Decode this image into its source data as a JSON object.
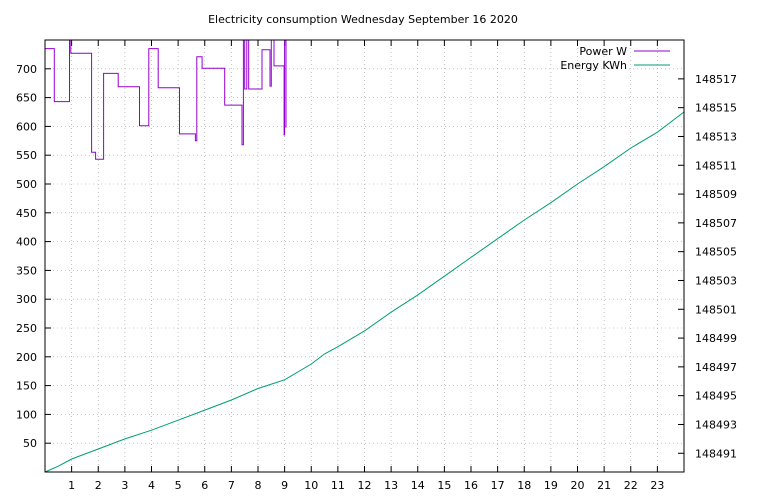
{
  "chart_data": {
    "type": "line",
    "title": "Electricity consumption Wednesday September 16 2020",
    "xlabel": "",
    "ylabel": "",
    "y2label": "",
    "xlim": [
      0,
      24
    ],
    "ylim": [
      0,
      750
    ],
    "y2lim": [
      148489.7,
      148519.7
    ],
    "grid": true,
    "legend_position": "top-right",
    "x_ticks": [
      1,
      2,
      3,
      4,
      5,
      6,
      7,
      8,
      9,
      10,
      11,
      12,
      13,
      14,
      15,
      16,
      17,
      18,
      19,
      20,
      21,
      22,
      23
    ],
    "y_ticks": [
      50,
      100,
      150,
      200,
      250,
      300,
      350,
      400,
      450,
      500,
      550,
      600,
      650,
      700
    ],
    "y2_ticks": [
      148491,
      148493,
      148495,
      148497,
      148499,
      148501,
      148503,
      148505,
      148507,
      148509,
      148511,
      148513,
      148515,
      148517
    ],
    "series": [
      {
        "name": "Power W",
        "axis": "left",
        "color": "#9400d3",
        "step": true,
        "x": [
          0,
          0.35,
          0.35,
          0.92,
          0.92,
          0.97,
          0.97,
          1.75,
          1.75,
          1.9,
          1.9,
          2.2,
          2.2,
          2.75,
          2.75,
          3.55,
          3.55,
          3.9,
          3.9,
          4.25,
          4.25,
          5.05,
          5.05,
          5.65,
          5.65,
          5.7,
          5.7,
          5.9,
          5.9,
          6.75,
          6.75,
          7.4,
          7.4,
          7.45,
          7.45,
          7.5,
          7.5,
          7.58,
          7.58,
          7.65,
          7.65,
          8.15,
          8.15,
          8.45,
          8.45,
          8.5,
          8.5,
          8.6,
          8.6,
          8.98,
          8.98,
          9.0,
          9.0,
          9.05,
          9.05
        ],
        "y": [
          735,
          735,
          643,
          643,
          750,
          750,
          727,
          727,
          555,
          555,
          543,
          543,
          692,
          692,
          669,
          669,
          601,
          601,
          735,
          735,
          667,
          667,
          587,
          587,
          575,
          575,
          721,
          721,
          701,
          701,
          637,
          637,
          568,
          568,
          750,
          750,
          665,
          665,
          750,
          750,
          665,
          665,
          733,
          733,
          670,
          670,
          750,
          750,
          705,
          705,
          585,
          585,
          750,
          750,
          598
        ]
      },
      {
        "name": "Energy KWh",
        "axis": "right",
        "color": "#009e73",
        "x": [
          0,
          0.5,
          1,
          2,
          3,
          4,
          5,
          6,
          7,
          8,
          9,
          10,
          10.5,
          11,
          12,
          13,
          14,
          15,
          16,
          17,
          18,
          19,
          20,
          21,
          22,
          23,
          24
        ],
        "y": [
          148489.7,
          148490.1,
          148490.6,
          148491.3,
          148492.0,
          148492.6,
          148493.3,
          148494.0,
          148494.7,
          148495.5,
          148496.1,
          148497.2,
          148497.9,
          148498.4,
          148499.5,
          148500.8,
          148502.0,
          148503.3,
          148504.6,
          148505.9,
          148507.2,
          148508.4,
          148509.7,
          148510.9,
          148512.2,
          148513.3,
          148514.7
        ]
      }
    ]
  }
}
